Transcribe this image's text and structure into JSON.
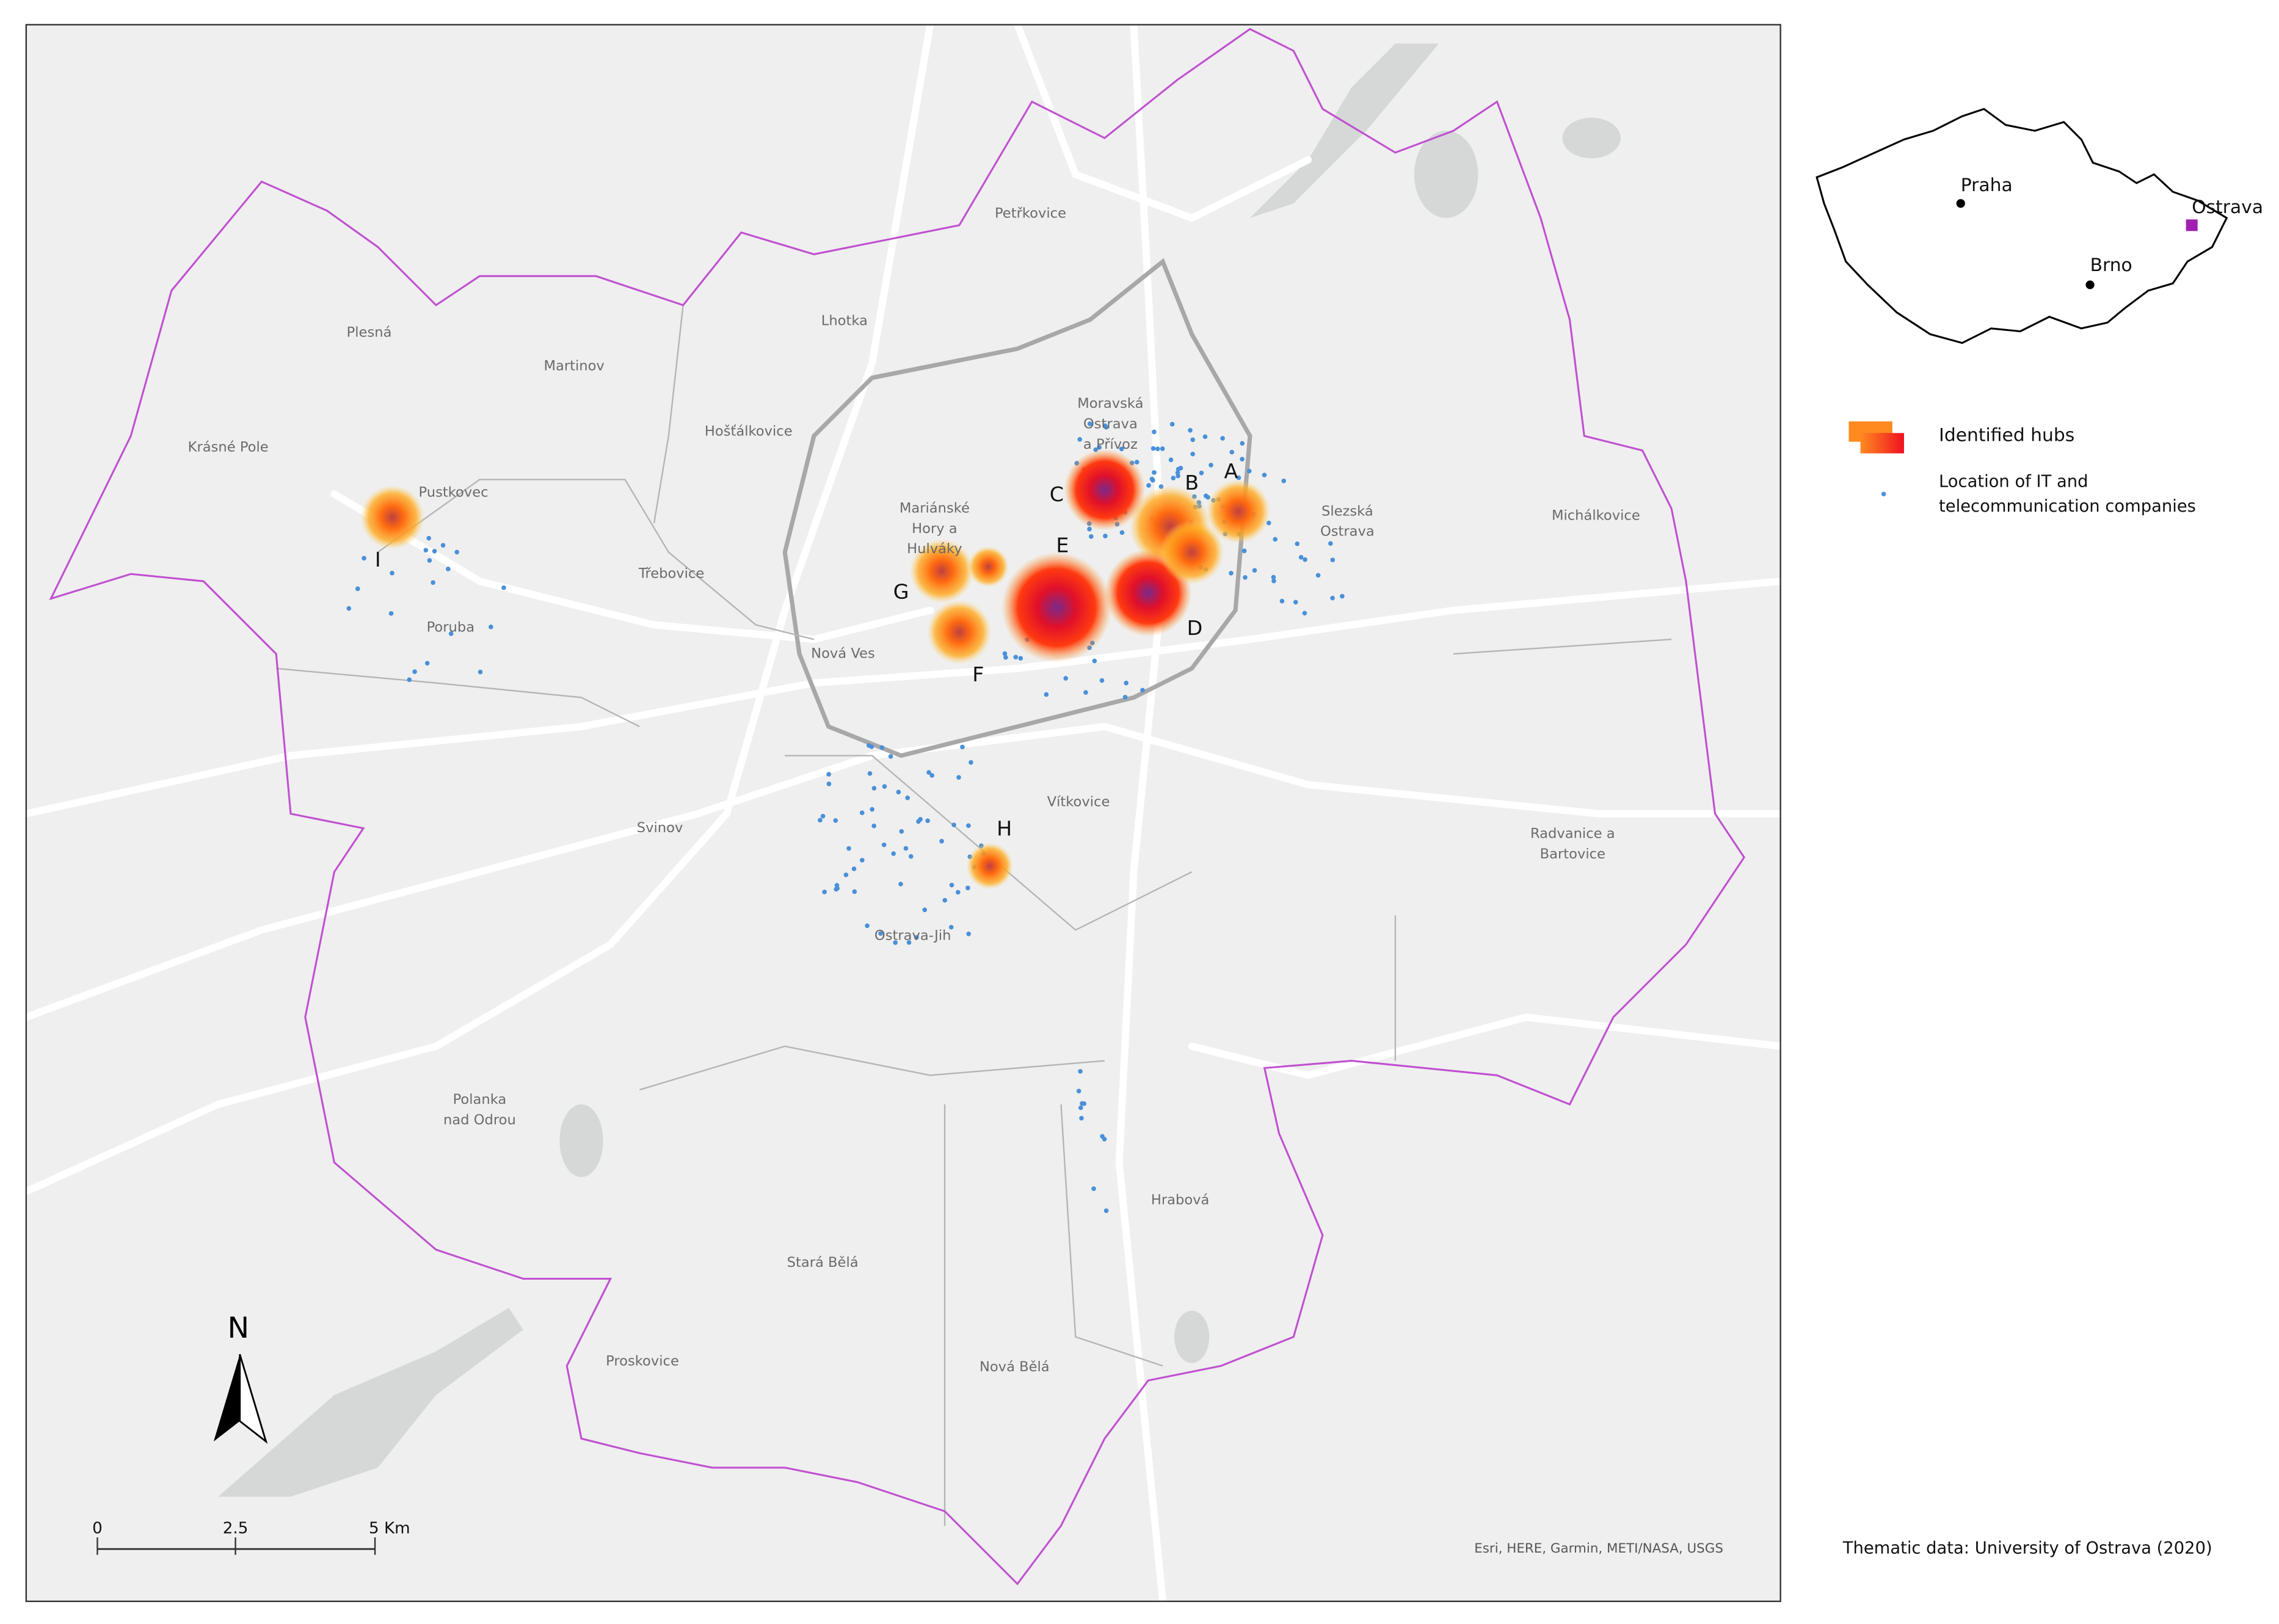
{
  "map": {
    "districts": [
      {
        "lines": [
          "Petřkovice"
        ]
      },
      {
        "lines": [
          "Lhotka"
        ]
      },
      {
        "lines": [
          "Plesná"
        ]
      },
      {
        "lines": [
          "Martinov"
        ]
      },
      {
        "lines": [
          "Hošťálkovice"
        ]
      },
      {
        "lines": [
          "Krásné Pole"
        ]
      },
      {
        "lines": [
          "Pustkovec"
        ]
      },
      {
        "lines": [
          "Moravská",
          "Ostrava",
          "a Přívoz"
        ]
      },
      {
        "lines": [
          "Mariánské",
          "Hory a",
          "Hulváky"
        ]
      },
      {
        "lines": [
          "Slezská",
          "Ostrava"
        ]
      },
      {
        "lines": [
          "Michálkovice"
        ]
      },
      {
        "lines": [
          "Třebovice"
        ]
      },
      {
        "lines": [
          "Poruba"
        ]
      },
      {
        "lines": [
          "Nová Ves"
        ]
      },
      {
        "lines": [
          "Vítkovice"
        ]
      },
      {
        "lines": [
          "Svinov"
        ]
      },
      {
        "lines": [
          "Radvanice a",
          "Bartovice"
        ]
      },
      {
        "lines": [
          "Ostrava-Jih"
        ]
      },
      {
        "lines": [
          "Polanka",
          "nad Odrou"
        ]
      },
      {
        "lines": [
          "Hrabová"
        ]
      },
      {
        "lines": [
          "Stará Bělá"
        ]
      },
      {
        "lines": [
          "Proskovice"
        ]
      },
      {
        "lines": [
          "Nová Bělá"
        ]
      }
    ],
    "hubs": [
      "A",
      "B",
      "C",
      "D",
      "E",
      "F",
      "G",
      "H",
      "I"
    ],
    "north_arrow": "N",
    "scale_bar": [
      "0",
      "2.5",
      "5 Km"
    ],
    "attribution": "Esri, HERE, Garmin, METI/NASA, USGS"
  },
  "inset": {
    "cities": [
      "Praha",
      "Brno",
      "Ostrava"
    ]
  },
  "legend": {
    "hubs": [
      "Identified hubs"
    ],
    "companies": [
      "Location of IT and",
      "telecommunication companies"
    ]
  },
  "source": "Thematic data: University of Ostrava (2020)"
}
